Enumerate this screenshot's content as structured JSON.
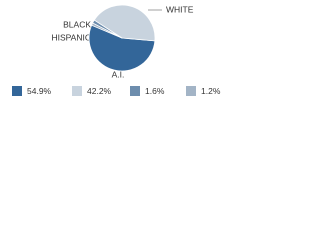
{
  "chart_data": {
    "type": "pie",
    "categories": [
      "A.I.",
      "WHITE",
      "BLACK",
      "HISPANIC"
    ],
    "values": [
      54.9,
      42.2,
      1.6,
      1.2
    ],
    "value_labels": [
      "54.9%",
      "42.2%",
      "1.6%",
      "1.2%"
    ],
    "colors": [
      "#336699",
      "#c8d3de",
      "#6d8dad",
      "#a3b4c6"
    ]
  }
}
